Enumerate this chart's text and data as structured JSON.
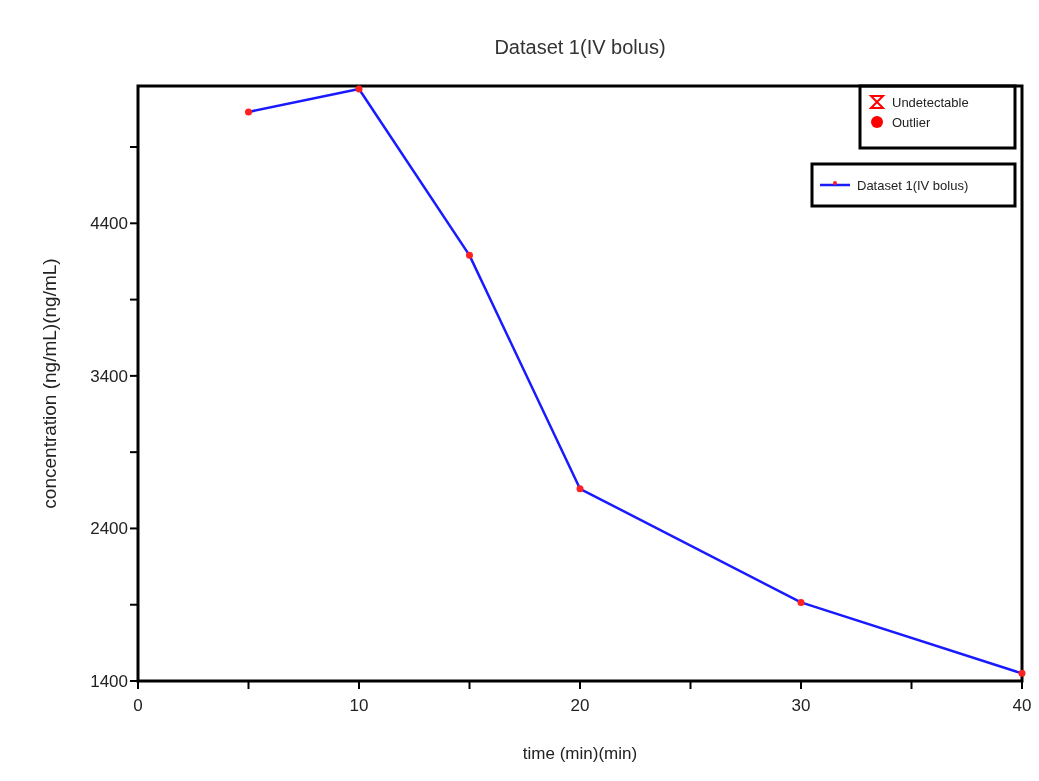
{
  "chart_data": {
    "type": "line",
    "title": "Dataset 1(IV bolus)",
    "xlabel": "time (min)(min)",
    "ylabel": "concentration (ng/mL)(ng/mL)",
    "x": [
      5,
      10,
      15,
      20,
      30,
      40
    ],
    "series": [
      {
        "name": "Undetectable",
        "color": "#ff0000",
        "marker": "triangle",
        "values": [
          null,
          null,
          null,
          null,
          null,
          null
        ]
      },
      {
        "name": "Outlier",
        "color": "#ff0000",
        "marker": "circle",
        "values": [
          null,
          null,
          null,
          null,
          null,
          null
        ]
      },
      {
        "name": "Dataset 1(IV bolus)",
        "color": "#1a1aff",
        "values": [
          5130,
          5280,
          4190,
          2660,
          1915,
          1450
        ]
      }
    ],
    "xlim": [
      0,
      40
    ],
    "xticks": [
      0,
      {
        "value": 5,
        "label": null
      },
      10,
      {
        "value": 15,
        "label": null
      },
      20,
      {
        "value": 25,
        "label": null
      },
      30,
      {
        "value": 35,
        "label": null
      },
      40
    ],
    "ylim": [
      1400,
      5300
    ],
    "yticks": [
      1400,
      {
        "value": 1900,
        "label": null
      },
      2400,
      {
        "value": 2900,
        "label": null
      },
      3400,
      {
        "value": 3900,
        "label": null
      },
      4400,
      {
        "value": 4900,
        "label": null
      }
    ],
    "legend": "top right",
    "marker": "circle",
    "line_style": "solid",
    "grid": false
  }
}
